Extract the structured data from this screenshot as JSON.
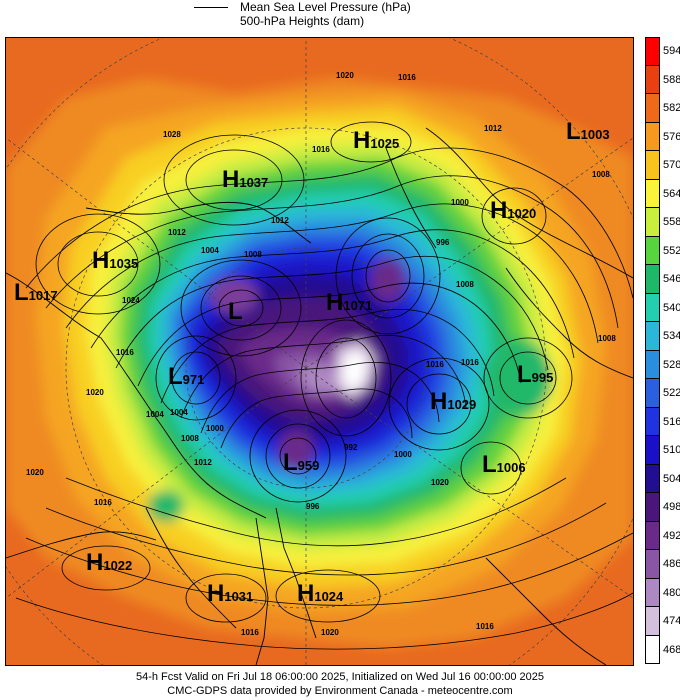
{
  "legend": {
    "mslp_label": "Mean Sea Level Pressure (hPa)",
    "heights_label": "500-hPa Heights (dam)"
  },
  "colorbar": {
    "levels": [
      "594",
      "588",
      "582",
      "576",
      "570",
      "564",
      "558",
      "552",
      "546",
      "540",
      "534",
      "528",
      "522",
      "516",
      "510",
      "504",
      "498",
      "492",
      "486",
      "480",
      "474",
      "468"
    ],
    "colors": [
      "#ff0000",
      "#e84010",
      "#ee6a1a",
      "#f59a1e",
      "#f7c31c",
      "#f9f33a",
      "#c8ef3c",
      "#58d43e",
      "#1fb868",
      "#24cfb0",
      "#2bb8d8",
      "#2a8ede",
      "#2a5fe0",
      "#1f34e0",
      "#1a10c8",
      "#220e90",
      "#4a167c",
      "#6a2a8a",
      "#8a55a5",
      "#ae88c2",
      "#d4c0dd",
      "#ffffff"
    ]
  },
  "centers": [
    {
      "type": "H",
      "value": "1025"
    },
    {
      "type": "L",
      "value": "1003"
    },
    {
      "type": "H",
      "value": "1037"
    },
    {
      "type": "H",
      "value": "1020"
    },
    {
      "type": "H",
      "value": "1035"
    },
    {
      "type": "L",
      "value": "1017"
    },
    {
      "type": "L",
      "value": ""
    },
    {
      "type": "H",
      "value": "1071"
    },
    {
      "type": "L",
      "value": "971"
    },
    {
      "type": "L",
      "value": "995"
    },
    {
      "type": "H",
      "value": "1029"
    },
    {
      "type": "L",
      "value": "1006"
    },
    {
      "type": "L",
      "value": "959"
    },
    {
      "type": "H",
      "value": "1022"
    },
    {
      "type": "H",
      "value": "1031"
    },
    {
      "type": "H",
      "value": "1024"
    }
  ],
  "isobar_labels": [
    "1020",
    "1016",
    "1028",
    "1012",
    "1016",
    "1012",
    "1008",
    "1000",
    "996",
    "1012",
    "1008",
    "1004",
    "1024",
    "1016",
    "1016",
    "1008",
    "1008",
    "1004",
    "1000",
    "1016",
    "1012",
    "1008",
    "1004",
    "1000",
    "996",
    "992",
    "1020",
    "1016",
    "1020",
    "1016",
    "1020",
    "1016",
    "1020"
  ],
  "footer": {
    "line1": "54-h Fcst Valid on Fri Jul 18 06:00:00 2025, Initialized on Wed Jul 16 00:00:00 2025",
    "line2": "CMC-GDPS data provided by Environment Canada - meteocentre.com"
  }
}
